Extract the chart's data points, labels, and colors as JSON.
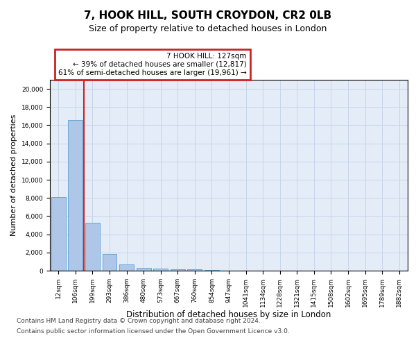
{
  "title1": "7, HOOK HILL, SOUTH CROYDON, CR2 0LB",
  "title2": "Size of property relative to detached houses in London",
  "xlabel": "Distribution of detached houses by size in London",
  "ylabel": "Number of detached properties",
  "categories": [
    "12sqm",
    "106sqm",
    "199sqm",
    "293sqm",
    "386sqm",
    "480sqm",
    "573sqm",
    "667sqm",
    "760sqm",
    "854sqm",
    "947sqm",
    "1041sqm",
    "1134sqm",
    "1228sqm",
    "1321sqm",
    "1415sqm",
    "1508sqm",
    "1602sqm",
    "1695sqm",
    "1789sqm",
    "1882sqm"
  ],
  "values": [
    8100,
    16600,
    5300,
    1800,
    650,
    330,
    200,
    150,
    120,
    100,
    0,
    0,
    0,
    0,
    0,
    0,
    0,
    0,
    0,
    0,
    0
  ],
  "bar_color": "#aec6e8",
  "bar_edge_color": "#5a9fd4",
  "vline_x": 1.5,
  "vline_color": "#cc2222",
  "annotation_text": "7 HOOK HILL: 127sqm\n← 39% of detached houses are smaller (12,817)\n61% of semi-detached houses are larger (19,961) →",
  "annotation_box_facecolor": "#ffffff",
  "annotation_box_edgecolor": "#cc2222",
  "ylim": [
    0,
    21000
  ],
  "yticks": [
    0,
    2000,
    4000,
    6000,
    8000,
    10000,
    12000,
    14000,
    16000,
    18000,
    20000
  ],
  "grid_color": "#c8d4e8",
  "bg_color": "#e4ecf7",
  "fig_bg": "#ffffff",
  "title1_fontsize": 11,
  "title2_fontsize": 9,
  "xlabel_fontsize": 8.5,
  "ylabel_fontsize": 8,
  "tick_fontsize": 6.5,
  "annotation_fontsize": 7.5,
  "footer_fontsize": 6.5,
  "footer1": "Contains HM Land Registry data © Crown copyright and database right 2024.",
  "footer2": "Contains public sector information licensed under the Open Government Licence v3.0."
}
